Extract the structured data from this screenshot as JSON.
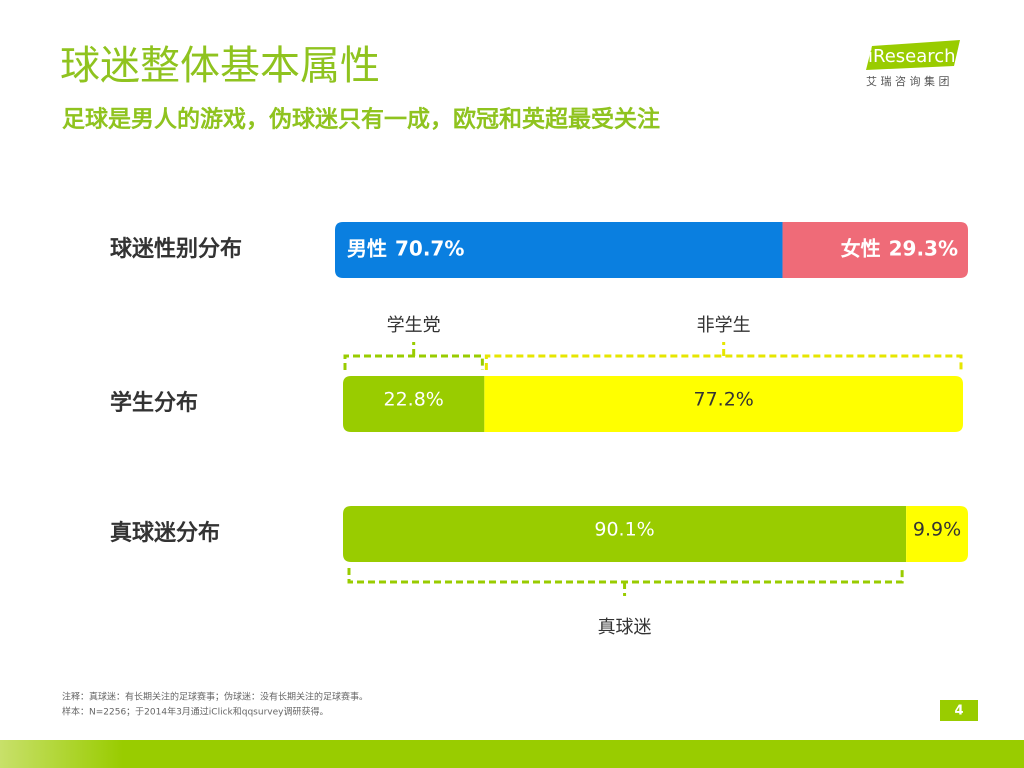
{
  "header": {
    "title": "球迷整体基本属性",
    "subtitle": "足球是男人的游戏，伪球迷只有一成，欧冠和英超最受关注",
    "logo": "iResearch",
    "logo_sub": "艾 瑞 咨 询 集 团"
  },
  "chart_data": [
    {
      "type": "bar",
      "title": "球迷性别分布",
      "series": [
        {
          "name": "男性",
          "color": "#0a7fe0",
          "values": [
            70.7
          ],
          "value_labels": [
            "70.7%"
          ]
        },
        {
          "name": "女性",
          "color": "#ef6b78",
          "values": [
            29.3
          ],
          "value_labels": [
            "29.3%"
          ]
        }
      ]
    },
    {
      "type": "bar",
      "title": "学生分布",
      "series": [
        {
          "name": "学生党",
          "color": "#99cc00",
          "values": [
            22.8
          ],
          "value_labels": [
            "22.8%"
          ]
        },
        {
          "name": "非学生",
          "color": "#ffff00",
          "values": [
            77.2
          ],
          "value_labels": [
            "77.2%"
          ]
        }
      ]
    },
    {
      "type": "bar",
      "title": "真球迷分布",
      "series": [
        {
          "name": "真球迷",
          "color": "#99cc00",
          "values": [
            90.1
          ],
          "value_labels": [
            "90.1%"
          ]
        },
        {
          "color": "#ffff00",
          "values": [
            9.9
          ],
          "value_labels": [
            "9.9%"
          ]
        }
      ]
    }
  ],
  "footnotes": [
    "注释：真球迷：有长期关注的足球赛事；伪球迷：没有长期关注的足球赛事。",
    "样本：N=2256；于2014年3月通过iClick和qqsurvey调研获得。"
  ],
  "page_number": "4"
}
